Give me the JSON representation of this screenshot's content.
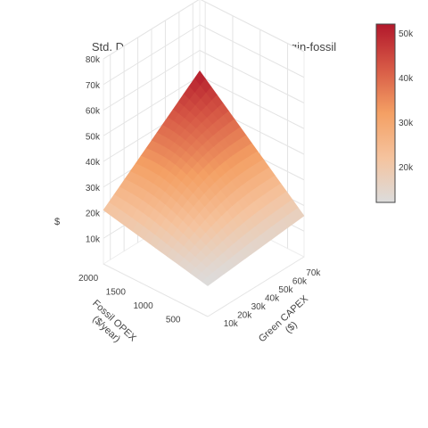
{
  "chart_data": {
    "type": "surface",
    "title": "Std. Dev. of NPV costs vehicle both-begin-fossil",
    "x_axis": {
      "label": "Green CAPEX ($)",
      "label_lines": [
        "Green CAPEX",
        "($)"
      ],
      "ticks": [
        10000,
        20000,
        30000,
        40000,
        50000,
        60000,
        70000
      ],
      "tick_labels": [
        "10k",
        "20k",
        "30k",
        "40k",
        "50k",
        "60k",
        "70k"
      ],
      "range": [
        5000,
        75000
      ]
    },
    "y_axis": {
      "label": "Fossil OPEX ($/year)",
      "label_lines": [
        "Fossil OPEX",
        "($/year)"
      ],
      "ticks": [
        500,
        1000,
        1500,
        2000
      ],
      "tick_labels": [
        "500",
        "1000",
        "1500",
        "2000"
      ],
      "range": [
        200,
        2100
      ]
    },
    "z_axis": {
      "label": "$",
      "ticks": [
        10000,
        20000,
        30000,
        40000,
        50000,
        60000,
        70000,
        80000
      ],
      "tick_labels": [
        "10k",
        "20k",
        "30k",
        "40k",
        "50k",
        "60k",
        "70k",
        "80k"
      ],
      "range": [
        0,
        80000
      ]
    },
    "colorbar": {
      "min": 12000,
      "max": 52000,
      "ticks": [
        20000,
        30000,
        40000,
        50000
      ],
      "tick_labels": [
        "20k",
        "30k",
        "40k",
        "50k"
      ],
      "colors": [
        "#dcdcdc",
        "#f5c39e",
        "#f4a064",
        "#d75a46",
        "#b2182b"
      ]
    },
    "surface_corners": {
      "green_capex_low_fossil_opex_low": 12000,
      "green_capex_high_fossil_opex_low": 16000,
      "green_capex_low_fossil_opex_high": 21000,
      "green_capex_high_fossil_opex_high": 52000
    }
  }
}
